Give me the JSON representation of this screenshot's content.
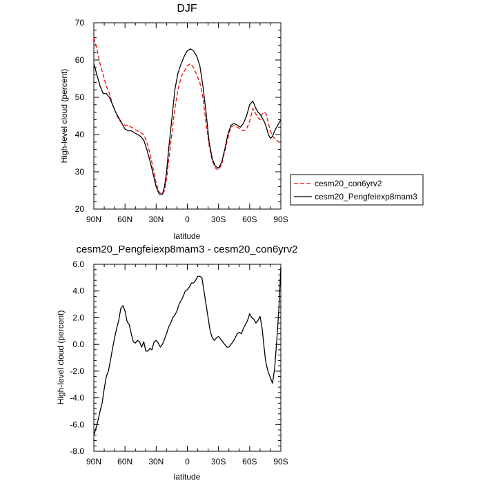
{
  "chart_data": [
    {
      "type": "line",
      "title": "DJF",
      "xlabel": "latitude",
      "ylabel": "High-level cloud (percent)",
      "xlim": [
        -90,
        90
      ],
      "ylim": [
        20,
        70
      ],
      "xticks": [
        -90,
        -60,
        -30,
        0,
        30,
        60,
        90
      ],
      "xtick_labels": [
        "90N",
        "60N",
        "30N",
        "0",
        "30S",
        "60S",
        "90S"
      ],
      "yticks": [
        20,
        30,
        40,
        50,
        60,
        70
      ],
      "ytick_labels": [
        "20",
        "30",
        "40",
        "50",
        "60",
        "70"
      ],
      "legend_position": "right",
      "series": [
        {
          "name": "cesm20_con6yrv2",
          "color": "#ff0000",
          "dash": "dashed",
          "x": [
            -90,
            -87,
            -84,
            -81,
            -78,
            -75,
            -72,
            -69,
            -66,
            -63,
            -60,
            -57,
            -54,
            -51,
            -48,
            -45,
            -42,
            -39,
            -36,
            -33,
            -30,
            -27,
            -24,
            -22,
            -20,
            -18,
            -15,
            -12,
            -9,
            -6,
            -3,
            0,
            3,
            6,
            9,
            12,
            15,
            18,
            21,
            24,
            27,
            30,
            33,
            36,
            39,
            42,
            45,
            48,
            51,
            54,
            57,
            60,
            63,
            66,
            68,
            70,
            72,
            74,
            76,
            78,
            80,
            82,
            84,
            86,
            88,
            90
          ],
          "y": [
            66,
            63,
            59,
            56,
            53,
            51,
            48,
            46,
            44,
            43,
            42.5,
            42.5,
            42,
            41.5,
            41,
            40.5,
            40,
            38,
            35,
            31,
            27,
            24.5,
            24,
            25,
            28,
            33,
            40,
            47,
            52,
            55.5,
            57,
            58.5,
            59,
            58,
            56,
            54,
            50,
            43,
            37,
            33,
            31,
            30.5,
            32,
            35.5,
            39,
            42,
            42.5,
            42,
            41.5,
            41,
            41.5,
            43.5,
            47,
            45.5,
            44.5,
            44,
            45.5,
            46,
            45.5,
            43,
            41,
            39.5,
            39,
            38.5,
            38,
            38
          ]
        },
        {
          "name": "cesm20_Pengfeiexp8mam3",
          "color": "#000000",
          "dash": "solid",
          "x": [
            -90,
            -87,
            -84,
            -81,
            -78,
            -75,
            -72,
            -69,
            -66,
            -63,
            -60,
            -57,
            -54,
            -51,
            -48,
            -45,
            -42,
            -39,
            -36,
            -33,
            -30,
            -27,
            -24,
            -22,
            -20,
            -18,
            -15,
            -12,
            -9,
            -6,
            -3,
            0,
            3,
            6,
            9,
            12,
            15,
            18,
            21,
            24,
            27,
            30,
            33,
            36,
            39,
            42,
            45,
            48,
            51,
            54,
            57,
            60,
            63,
            66,
            68,
            70,
            72,
            74,
            76,
            78,
            80,
            82,
            84,
            86,
            88,
            90
          ],
          "y": [
            59,
            56,
            53,
            51,
            51,
            50,
            48,
            46,
            44.5,
            43,
            41.5,
            41,
            41,
            40.5,
            40,
            39.5,
            38.5,
            36,
            33,
            29.5,
            26,
            24,
            24,
            26,
            30,
            36,
            44,
            52,
            56.5,
            59,
            61,
            62.5,
            63,
            62.5,
            61,
            58.5,
            53,
            46,
            38,
            33.5,
            31.5,
            31,
            32.5,
            36,
            40,
            42.5,
            43,
            42.5,
            42,
            43,
            45,
            48,
            49,
            47,
            46,
            45.5,
            44.5,
            43.5,
            42,
            40,
            39,
            39.5,
            41,
            42,
            43,
            44
          ]
        }
      ]
    },
    {
      "type": "line",
      "title": "cesm20_Pengfeiexp8mam3 - cesm20_con6yrv2",
      "xlabel": "latitude",
      "ylabel": "High-level cloud (percent)",
      "xlim": [
        -90,
        90
      ],
      "ylim": [
        -8,
        6
      ],
      "xticks": [
        -90,
        -60,
        -30,
        0,
        30,
        60,
        90
      ],
      "xtick_labels": [
        "90N",
        "60N",
        "30N",
        "0",
        "30S",
        "60S",
        "90S"
      ],
      "yticks": [
        -8,
        -6,
        -4,
        -2,
        0,
        2,
        4,
        6
      ],
      "ytick_labels": [
        "-8.0",
        "-6.0",
        "-4.0",
        "-2.0",
        "0.0",
        "2.0",
        "4.0",
        "6.0"
      ],
      "series": [
        {
          "color": "#000000",
          "dash": "solid",
          "x": [
            -90,
            -88,
            -86,
            -84,
            -82,
            -80,
            -78,
            -76,
            -74,
            -72,
            -70,
            -68,
            -66,
            -64,
            -62,
            -60,
            -58,
            -56,
            -54,
            -52,
            -50,
            -48,
            -46,
            -44,
            -42,
            -40,
            -38,
            -36,
            -34,
            -32,
            -30,
            -28,
            -26,
            -24,
            -22,
            -20,
            -18,
            -16,
            -14,
            -12,
            -10,
            -8,
            -6,
            -4,
            -2,
            0,
            2,
            4,
            6,
            8,
            10,
            12,
            14,
            16,
            18,
            20,
            22,
            24,
            26,
            28,
            30,
            32,
            34,
            36,
            38,
            40,
            42,
            44,
            46,
            48,
            50,
            52,
            54,
            56,
            58,
            60,
            62,
            64,
            66,
            68,
            70,
            72,
            74,
            75,
            76,
            78,
            80,
            82,
            84,
            86,
            88,
            90
          ],
          "y": [
            -6.8,
            -6.3,
            -5.7,
            -5.0,
            -4.4,
            -3.3,
            -2.4,
            -2.0,
            -1.2,
            -0.3,
            0.5,
            1.2,
            1.8,
            2.7,
            2.9,
            2.5,
            1.7,
            1.5,
            0.8,
            0.2,
            0.1,
            0.3,
            0.2,
            -0.2,
            0.2,
            -0.5,
            -0.5,
            -0.3,
            -0.4,
            0.2,
            0.3,
            0.1,
            -0.2,
            0.0,
            0.4,
            0.8,
            1.3,
            1.6,
            2.0,
            2.2,
            2.5,
            3.0,
            3.3,
            3.6,
            4.0,
            4.1,
            4.3,
            4.6,
            4.6,
            4.8,
            5.1,
            5.1,
            5.0,
            4.0,
            3.0,
            2.0,
            1.0,
            0.5,
            0.3,
            0.5,
            0.6,
            0.4,
            0.2,
            0.0,
            -0.2,
            -0.2,
            0.0,
            0.2,
            0.5,
            0.8,
            0.9,
            0.8,
            1.2,
            1.5,
            1.8,
            2.3,
            2.0,
            1.9,
            1.6,
            1.8,
            2.1,
            1.2,
            -0.3,
            -1.0,
            -1.5,
            -2.1,
            -2.5,
            -2.9,
            -1.8,
            0.2,
            2.5,
            5.8
          ]
        }
      ]
    }
  ]
}
